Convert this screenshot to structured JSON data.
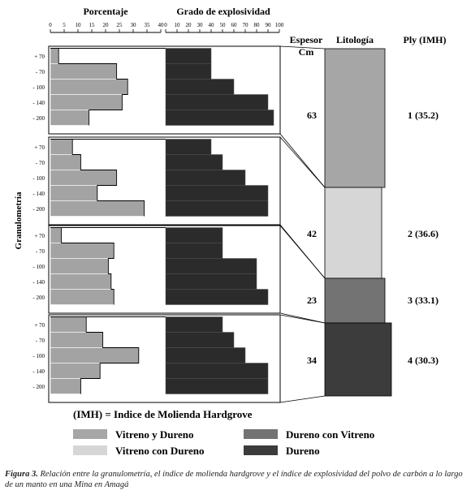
{
  "chart_data": {
    "type": "bar",
    "headers": {
      "porcentaje": "Porcentaje",
      "explosividad": "Grado de explosividad",
      "espesor_line1": "Espesor",
      "espesor_line2": "Cm",
      "litologia": "Litología",
      "ply": "Ply (IMH)",
      "ylabel": "Granulometría"
    },
    "pct_ticks": [
      0,
      5,
      10,
      15,
      20,
      25,
      30,
      35,
      40
    ],
    "pct_xlim": [
      0,
      40
    ],
    "expl_ticks": [
      0,
      10,
      20,
      30,
      40,
      50,
      60,
      70,
      80,
      90,
      100
    ],
    "expl_xlim": [
      0,
      100
    ],
    "categories": [
      "+ 70",
      "- 70",
      "- 100",
      "- 140",
      "- 200"
    ],
    "plies": [
      {
        "porcentaje": [
          3,
          24,
          28,
          26,
          14
        ],
        "explosividad": [
          40,
          40,
          60,
          90,
          95
        ],
        "espesor": "63",
        "ply": "1 (35.2)",
        "color": "#a6a6a6"
      },
      {
        "porcentaje": [
          8,
          11,
          24,
          17,
          34
        ],
        "explosividad": [
          40,
          50,
          70,
          90,
          90
        ],
        "espesor": "42",
        "ply": "2 (36.6)",
        "color": "#d6d6d6"
      },
      {
        "porcentaje": [
          4,
          23,
          21,
          22,
          23
        ],
        "explosividad": [
          50,
          50,
          80,
          80,
          90
        ],
        "espesor": "23",
        "ply": "3 (33.1)",
        "color": "#737373"
      },
      {
        "porcentaje": [
          13,
          19,
          32,
          18,
          11
        ],
        "explosividad": [
          50,
          60,
          70,
          90,
          90
        ],
        "espesor": "34",
        "ply": "4 (30.3)",
        "color": "#3c3c3c"
      }
    ],
    "bar_color_pct": "#a3a3a3",
    "bar_color_expl": "#2b2b2b",
    "legend": {
      "title": "(IMH) = Indice de Molienda Hardgrove",
      "items": [
        {
          "label": "Vitreno y Dureno",
          "color": "#a6a6a6"
        },
        {
          "label": "Vitreno con Dureno",
          "color": "#d6d6d6"
        },
        {
          "label": "Dureno con Vitreno",
          "color": "#737373"
        },
        {
          "label": "Dureno",
          "color": "#3c3c3c"
        }
      ]
    }
  },
  "caption": {
    "label": "Figura 3.",
    "text": " Relación entre la granulometría, el índice de molienda hardgrove y el índice de explosividad del polvo de carbón a lo largo de un manto en una Mina en Amagá"
  }
}
